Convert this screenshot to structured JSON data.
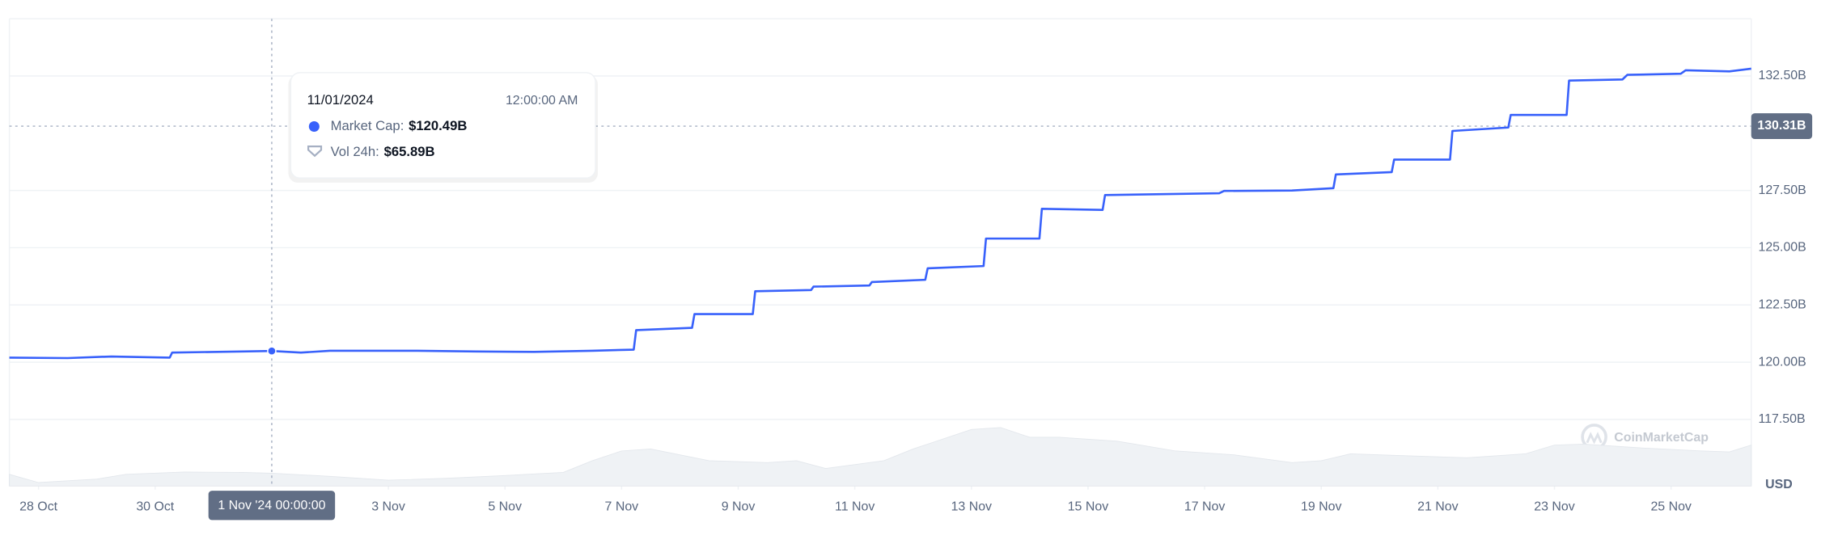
{
  "chart_data": {
    "type": "line",
    "series": [
      {
        "name": "Market Cap",
        "color": "#3861fb",
        "x": [
          "2024-10-27T12:00",
          "2024-10-28T12:00",
          "2024-10-29T06:00",
          "2024-10-30T06:00",
          "2024-10-30T07:00",
          "2024-10-31T12:00",
          "2024-11-01T00:00",
          "2024-11-01T12:00",
          "2024-11-02T00:00",
          "2024-11-03T12:00",
          "2024-11-04T12:00",
          "2024-11-05T12:00",
          "2024-11-06T12:00",
          "2024-11-07T05:00",
          "2024-11-07T06:00",
          "2024-11-08T05:00",
          "2024-11-08T06:00",
          "2024-11-09T06:00",
          "2024-11-09T07:00",
          "2024-11-10T06:00",
          "2024-11-10T07:00",
          "2024-11-11T06:00",
          "2024-11-11T07:00",
          "2024-11-12T05:00",
          "2024-11-12T06:00",
          "2024-11-13T05:00",
          "2024-11-13T06:00",
          "2024-11-14T04:00",
          "2024-11-14T05:00",
          "2024-11-15T06:00",
          "2024-11-15T07:00",
          "2024-11-16T12:00",
          "2024-11-17T06:00",
          "2024-11-17T08:00",
          "2024-11-18T12:00",
          "2024-11-19T05:00",
          "2024-11-19T06:00",
          "2024-11-20T05:00",
          "2024-11-20T06:00",
          "2024-11-21T05:00",
          "2024-11-21T06:00",
          "2024-11-22T05:00",
          "2024-11-22T06:00",
          "2024-11-23T05:00",
          "2024-11-23T06:00",
          "2024-11-24T04:00",
          "2024-11-24T06:00",
          "2024-11-25T04:00",
          "2024-11-25T06:00",
          "2024-11-26T00:00",
          "2024-11-26T09:00"
        ],
        "values": [
          120.2,
          120.18,
          120.25,
          120.2,
          120.42,
          120.47,
          120.49,
          120.42,
          120.5,
          120.5,
          120.47,
          120.45,
          120.5,
          120.55,
          121.4,
          121.5,
          122.1,
          122.1,
          123.1,
          123.15,
          123.3,
          123.35,
          123.5,
          123.6,
          124.1,
          124.2,
          125.4,
          125.4,
          126.7,
          126.65,
          127.3,
          127.35,
          127.38,
          127.48,
          127.5,
          127.6,
          128.2,
          128.3,
          128.85,
          128.85,
          130.1,
          130.25,
          130.8,
          130.8,
          132.3,
          132.35,
          132.55,
          132.6,
          132.75,
          132.7,
          132.82
        ]
      },
      {
        "name": "Vol 24h",
        "color": "#eff2f5",
        "axis": "volume",
        "x": [
          "2024-10-27T12:00",
          "2024-10-28T00:00",
          "2024-10-29T00:00",
          "2024-10-29T12:00",
          "2024-10-30T12:00",
          "2024-10-31T12:00",
          "2024-11-01T00:00",
          "2024-11-02T00:00",
          "2024-11-03T00:00",
          "2024-11-04T00:00",
          "2024-11-05T00:00",
          "2024-11-06T00:00",
          "2024-11-06T12:00",
          "2024-11-07T00:00",
          "2024-11-07T12:00",
          "2024-11-08T12:00",
          "2024-11-09T12:00",
          "2024-11-10T00:00",
          "2024-11-10T12:00",
          "2024-11-11T12:00",
          "2024-11-12T00:00",
          "2024-11-12T12:00",
          "2024-11-13T00:00",
          "2024-11-13T12:00",
          "2024-11-14T00:00",
          "2024-11-14T12:00",
          "2024-11-15T12:00",
          "2024-11-16T12:00",
          "2024-11-17T12:00",
          "2024-11-18T12:00",
          "2024-11-19T00:00",
          "2024-11-19T12:00",
          "2024-11-20T12:00",
          "2024-11-21T12:00",
          "2024-11-22T12:00",
          "2024-11-23T00:00",
          "2024-11-23T12:00",
          "2024-11-24T12:00",
          "2024-11-25T12:00",
          "2024-11-26T00:00",
          "2024-11-26T09:00"
        ],
        "values": [
          60,
          18,
          36,
          60,
          72,
          70,
          65.89,
          50,
          30,
          40,
          54,
          70,
          130,
          180,
          190,
          130,
          120,
          130,
          90,
          130,
          190,
          240,
          290,
          300,
          250,
          250,
          230,
          180,
          160,
          120,
          130,
          165,
          155,
          145,
          165,
          210,
          215,
          195,
          180,
          175,
          210
        ]
      }
    ],
    "xlim": [
      "2024-10-27T12:00",
      "2024-11-26T09:00"
    ],
    "xticks": [
      {
        "value": "2024-10-28",
        "label": "28 Oct"
      },
      {
        "value": "2024-10-30",
        "label": "30 Oct"
      },
      {
        "value": "2024-11-03",
        "label": "3 Nov"
      },
      {
        "value": "2024-11-05",
        "label": "5 Nov"
      },
      {
        "value": "2024-11-07",
        "label": "7 Nov"
      },
      {
        "value": "2024-11-09",
        "label": "9 Nov"
      },
      {
        "value": "2024-11-11",
        "label": "11 Nov"
      },
      {
        "value": "2024-11-13",
        "label": "13 Nov"
      },
      {
        "value": "2024-11-15",
        "label": "15 Nov"
      },
      {
        "value": "2024-11-17",
        "label": "17 Nov"
      },
      {
        "value": "2024-11-19",
        "label": "19 Nov"
      },
      {
        "value": "2024-11-21",
        "label": "21 Nov"
      },
      {
        "value": "2024-11-23",
        "label": "23 Nov"
      },
      {
        "value": "2024-11-25",
        "label": "25 Nov"
      }
    ],
    "ylim": [
      114.59,
      135
    ],
    "yticks": [
      {
        "value": 117.5,
        "label": "117.50B"
      },
      {
        "value": 120,
        "label": "120.00B"
      },
      {
        "value": 122.5,
        "label": "122.50B"
      },
      {
        "value": 125,
        "label": "125.00B"
      },
      {
        "value": 127.5,
        "label": "127.50B"
      },
      {
        "value": 132.5,
        "label": "132.50B"
      }
    ],
    "y_unit": "USD",
    "grid": true,
    "price_marker": {
      "value": 130.31,
      "label": "130.31B"
    },
    "crosshair": {
      "x": "2024-11-01T00:00",
      "label": "1 Nov '24 00:00:00"
    },
    "tooltip": {
      "date": "11/01/2024",
      "time": "12:00:00 AM",
      "rows": [
        {
          "label": "Market Cap:",
          "value": "$120.49B"
        },
        {
          "label": "Vol 24h:",
          "value": "$65.89B"
        }
      ]
    },
    "watermark": "CoinMarketCap"
  }
}
